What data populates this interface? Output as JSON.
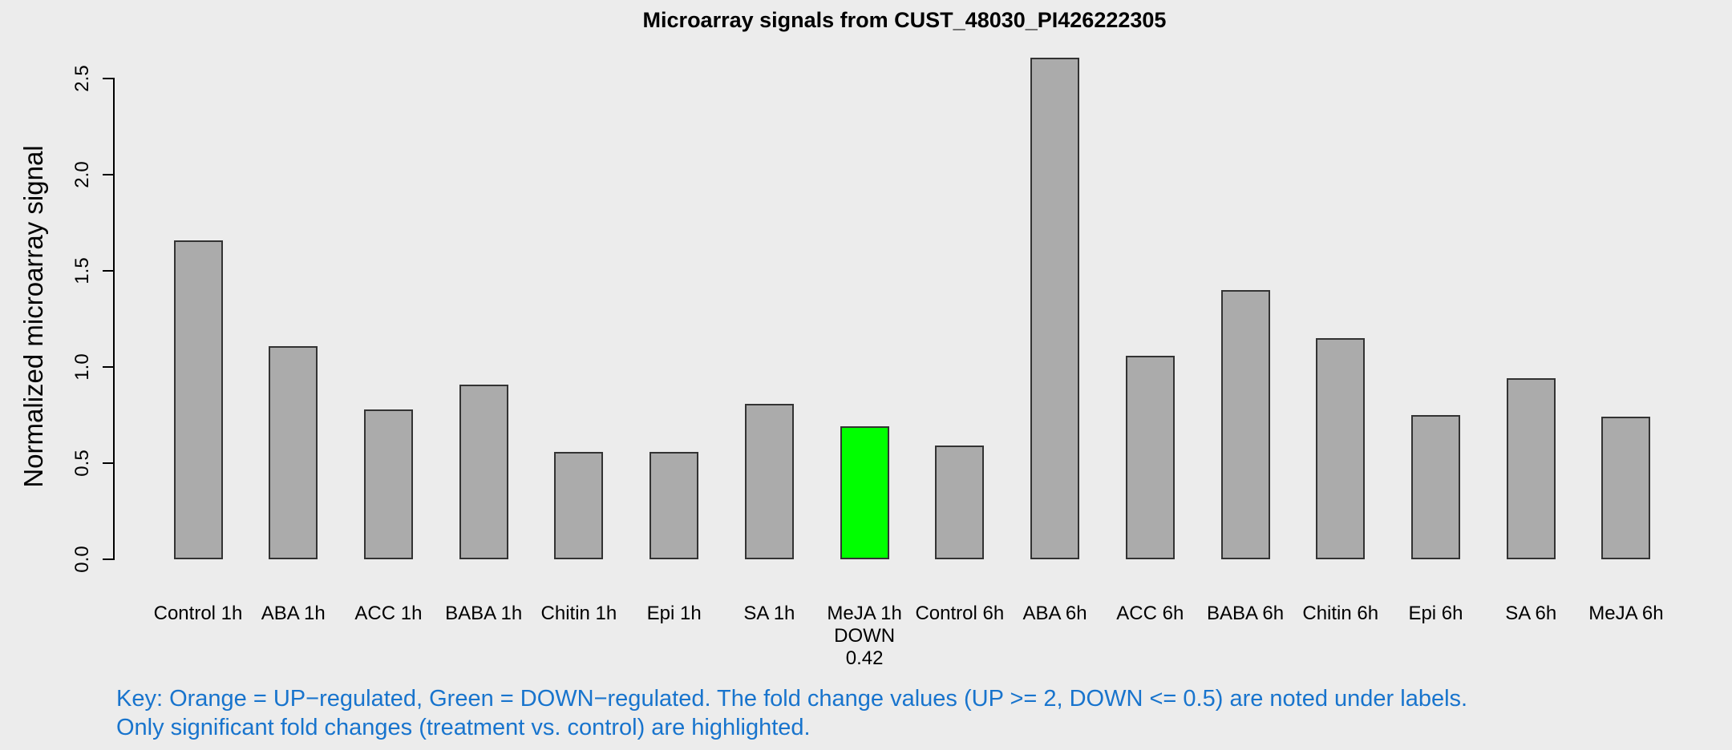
{
  "title": "Microarray signals from CUST_48030_PI426222305",
  "y_axis_label": "Normalized microarray signal",
  "key": {
    "line1": "Key: Orange = UP−regulated, Green = DOWN−regulated. The fold change values (UP >= 2, DOWN <= 0.5) are noted under labels.",
    "line2": "Only significant fold changes (treatment vs. control) are highlighted."
  },
  "colors": {
    "background": "#ECECEC",
    "bar_gray": "#ABABAB",
    "bar_green": "#00FF00",
    "bar_border": "#333333",
    "axis": "#000000",
    "key_text": "#1874CD"
  },
  "chart_data": {
    "type": "bar",
    "title": "Microarray signals from CUST_48030_PI426222305",
    "xlabel": "",
    "ylabel": "Normalized microarray signal",
    "ylim": [
      0,
      2.65
    ],
    "yticks": [
      0.0,
      0.5,
      1.0,
      1.5,
      2.0,
      2.5
    ],
    "grid": false,
    "legend_position": "none",
    "categories": [
      "Control 1h",
      "ABA 1h",
      "ACC 1h",
      "BABA 1h",
      "Chitin 1h",
      "Epi 1h",
      "SA 1h",
      "MeJA 1h",
      "Control 6h",
      "ABA 6h",
      "ACC 6h",
      "BABA 6h",
      "Chitin 6h",
      "Epi 6h",
      "SA 6h",
      "MeJA 6h"
    ],
    "values": [
      1.66,
      1.11,
      0.78,
      0.91,
      0.56,
      0.56,
      0.81,
      0.69,
      0.59,
      2.61,
      1.06,
      1.4,
      1.15,
      0.75,
      0.94,
      0.74
    ],
    "bar_fill": [
      "#ABABAB",
      "#ABABAB",
      "#ABABAB",
      "#ABABAB",
      "#ABABAB",
      "#ABABAB",
      "#ABABAB",
      "#00FF00",
      "#ABABAB",
      "#ABABAB",
      "#ABABAB",
      "#ABABAB",
      "#ABABAB",
      "#ABABAB",
      "#ABABAB",
      "#ABABAB"
    ],
    "annotations": [
      {
        "index": 7,
        "category": "MeJA 1h",
        "lines": [
          "DOWN",
          "0.42"
        ],
        "meaning": "DOWN-regulated, fold change 0.42"
      }
    ]
  }
}
